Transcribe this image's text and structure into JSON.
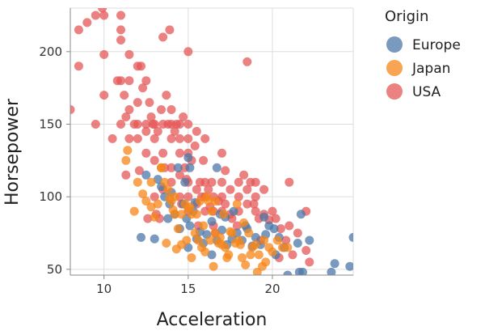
{
  "chart_data": {
    "type": "scatter",
    "xlabel": "Acceleration",
    "ylabel": "Horsepower",
    "xlim": [
      8,
      24.8
    ],
    "ylim": [
      46,
      230
    ],
    "x_ticks": [
      "10",
      "15",
      "20"
    ],
    "y_ticks": [
      "50",
      "100",
      "150",
      "200"
    ],
    "grid": true,
    "legend": {
      "title": "Origin",
      "placement": "right"
    },
    "colors": {
      "Europe": "#4c78a8",
      "Japan": "#f58518",
      "USA": "#e45756"
    },
    "series": [
      {
        "name": "Europe",
        "points": [
          [
            24.8,
            72
          ],
          [
            24.6,
            52
          ],
          [
            23.5,
            48
          ],
          [
            23.7,
            54
          ],
          [
            21.8,
            48
          ],
          [
            21.6,
            48
          ],
          [
            21.5,
            68
          ],
          [
            22.2,
            70
          ],
          [
            21.7,
            88
          ],
          [
            20.9,
            46
          ],
          [
            20.7,
            65
          ],
          [
            20.4,
            72
          ],
          [
            20.1,
            78
          ],
          [
            19.8,
            80
          ],
          [
            19.6,
            74
          ],
          [
            19.3,
            67
          ],
          [
            19.0,
            72
          ],
          [
            18.8,
            66
          ],
          [
            18.5,
            78
          ],
          [
            18.2,
            70
          ],
          [
            17.9,
            75
          ],
          [
            17.6,
            71
          ],
          [
            17.3,
            67
          ],
          [
            17.0,
            77
          ],
          [
            16.7,
            70
          ],
          [
            16.4,
            60
          ],
          [
            16.1,
            74
          ],
          [
            15.9,
            68
          ],
          [
            15.7,
            76
          ],
          [
            15.5,
            71
          ],
          [
            15.3,
            90
          ],
          [
            15.1,
            80
          ],
          [
            14.9,
            85
          ],
          [
            14.7,
            95
          ],
          [
            14.5,
            78
          ],
          [
            14.2,
            88
          ],
          [
            13.9,
            95
          ],
          [
            13.6,
            100
          ],
          [
            13.4,
            107
          ],
          [
            13.2,
            112
          ],
          [
            13.0,
            71
          ],
          [
            12.5,
            115
          ],
          [
            12.2,
            72
          ],
          [
            15.4,
            96
          ],
          [
            15.1,
            120
          ],
          [
            15.0,
            127
          ],
          [
            16.7,
            120
          ],
          [
            14.0,
            103
          ],
          [
            14.4,
            120
          ],
          [
            14.8,
            110
          ],
          [
            16.4,
            83
          ],
          [
            17.2,
            86
          ],
          [
            18.4,
            80
          ],
          [
            19.5,
            86
          ],
          [
            20.2,
            60
          ],
          [
            17.7,
            90
          ],
          [
            16.9,
            88
          ],
          [
            13.8,
            85
          ],
          [
            15.0,
            65
          ]
        ]
      },
      {
        "name": "Japan",
        "points": [
          [
            11.4,
            132
          ],
          [
            11.3,
            125
          ],
          [
            11.8,
            90
          ],
          [
            12.0,
            110
          ],
          [
            12.3,
            102
          ],
          [
            12.5,
            97
          ],
          [
            12.8,
            93
          ],
          [
            13.0,
            86
          ],
          [
            13.2,
            95
          ],
          [
            13.4,
            120
          ],
          [
            13.6,
            110
          ],
          [
            13.8,
            105
          ],
          [
            14.0,
            97
          ],
          [
            14.2,
            88
          ],
          [
            14.4,
            78
          ],
          [
            14.6,
            67
          ],
          [
            14.8,
            95
          ],
          [
            15.0,
            92
          ],
          [
            15.2,
            88
          ],
          [
            15.4,
            75
          ],
          [
            15.6,
            70
          ],
          [
            15.8,
            65
          ],
          [
            16.0,
            62
          ],
          [
            16.2,
            97
          ],
          [
            16.4,
            90
          ],
          [
            16.6,
            75
          ],
          [
            16.8,
            68
          ],
          [
            17.0,
            67
          ],
          [
            17.2,
            65
          ],
          [
            17.4,
            60
          ],
          [
            17.6,
            75
          ],
          [
            17.8,
            68
          ],
          [
            18.0,
            70
          ],
          [
            18.2,
            58
          ],
          [
            18.4,
            53
          ],
          [
            18.6,
            75
          ],
          [
            18.8,
            65
          ],
          [
            19.0,
            67
          ],
          [
            19.2,
            60
          ],
          [
            19.4,
            52
          ],
          [
            19.6,
            55
          ],
          [
            19.8,
            65
          ],
          [
            20.0,
            62
          ],
          [
            20.3,
            70
          ],
          [
            20.6,
            65
          ],
          [
            20.9,
            65
          ],
          [
            12.8,
            110
          ],
          [
            13.4,
            120
          ],
          [
            14.2,
            100
          ],
          [
            14.6,
            88
          ],
          [
            15.1,
            93
          ],
          [
            15.7,
            97
          ],
          [
            16.3,
            70
          ],
          [
            16.9,
            72
          ],
          [
            17.5,
            76
          ],
          [
            18.1,
            67
          ],
          [
            18.7,
            60
          ],
          [
            19.1,
            48
          ],
          [
            19.5,
            70
          ],
          [
            15.5,
            88
          ],
          [
            16.1,
            100
          ],
          [
            13.9,
            99
          ],
          [
            14.9,
            70
          ],
          [
            15.9,
            80
          ],
          [
            17.1,
            88
          ],
          [
            17.9,
            95
          ],
          [
            16.5,
            52
          ],
          [
            14.3,
            64
          ],
          [
            13.7,
            68
          ],
          [
            15.2,
            58
          ],
          [
            18.3,
            82
          ],
          [
            14.1,
            91
          ],
          [
            16.6,
            97
          ],
          [
            17.3,
            58
          ]
        ]
      },
      {
        "name": "USA",
        "points": [
          [
            8.0,
            160
          ],
          [
            8.5,
            215
          ],
          [
            8.5,
            190
          ],
          [
            9.0,
            220
          ],
          [
            9.5,
            225
          ],
          [
            10.0,
            225
          ],
          [
            9.9,
            230
          ],
          [
            10.0,
            198
          ],
          [
            9.5,
            150
          ],
          [
            10.0,
            170
          ],
          [
            10.5,
            140
          ],
          [
            10.8,
            180
          ],
          [
            11.0,
            225
          ],
          [
            11.0,
            215
          ],
          [
            11.0,
            208
          ],
          [
            11.0,
            180
          ],
          [
            11.0,
            150
          ],
          [
            11.2,
            170
          ],
          [
            11.3,
            155
          ],
          [
            11.5,
            198
          ],
          [
            11.5,
            180
          ],
          [
            11.5,
            160
          ],
          [
            11.5,
            140
          ],
          [
            11.3,
            115
          ],
          [
            11.8,
            150
          ],
          [
            12.0,
            190
          ],
          [
            12.0,
            165
          ],
          [
            12.0,
            150
          ],
          [
            12.0,
            140
          ],
          [
            12.2,
            190
          ],
          [
            12.3,
            175
          ],
          [
            12.5,
            180
          ],
          [
            12.5,
            150
          ],
          [
            12.5,
            145
          ],
          [
            12.5,
            130
          ],
          [
            12.7,
            165
          ],
          [
            12.8,
            155
          ],
          [
            12.9,
            150
          ],
          [
            13.0,
            150
          ],
          [
            13.0,
            140
          ],
          [
            13.0,
            125
          ],
          [
            13.0,
            100
          ],
          [
            13.2,
            145
          ],
          [
            13.4,
            160
          ],
          [
            13.5,
            210
          ],
          [
            13.5,
            150
          ],
          [
            13.5,
            130
          ],
          [
            13.5,
            105
          ],
          [
            13.7,
            170
          ],
          [
            13.8,
            150
          ],
          [
            13.9,
            215
          ],
          [
            14.0,
            160
          ],
          [
            14.0,
            150
          ],
          [
            14.0,
            140
          ],
          [
            14.0,
            120
          ],
          [
            14.0,
            110
          ],
          [
            14.2,
            145
          ],
          [
            14.3,
            150
          ],
          [
            14.5,
            150
          ],
          [
            14.5,
            140
          ],
          [
            14.5,
            130
          ],
          [
            14.5,
            115
          ],
          [
            14.5,
            100
          ],
          [
            14.7,
            155
          ],
          [
            14.8,
            120
          ],
          [
            15.0,
            200
          ],
          [
            15.0,
            150
          ],
          [
            15.0,
            140
          ],
          [
            15.0,
            130
          ],
          [
            15.0,
            110
          ],
          [
            15.0,
            100
          ],
          [
            15.0,
            90
          ],
          [
            15.2,
            125
          ],
          [
            15.4,
            135
          ],
          [
            15.5,
            145
          ],
          [
            15.5,
            105
          ],
          [
            15.5,
            95
          ],
          [
            15.7,
            110
          ],
          [
            15.8,
            100
          ],
          [
            16.0,
            140
          ],
          [
            16.0,
            110
          ],
          [
            16.0,
            100
          ],
          [
            16.0,
            90
          ],
          [
            16.2,
            105
          ],
          [
            16.4,
            110
          ],
          [
            16.5,
            100
          ],
          [
            16.5,
            90
          ],
          [
            16.5,
            80
          ],
          [
            16.8,
            97
          ],
          [
            17.0,
            130
          ],
          [
            17.0,
            110
          ],
          [
            17.0,
            100
          ],
          [
            17.0,
            90
          ],
          [
            17.2,
            95
          ],
          [
            17.5,
            105
          ],
          [
            17.5,
            88
          ],
          [
            18.0,
            110
          ],
          [
            18.0,
            100
          ],
          [
            18.0,
            90
          ],
          [
            18.3,
            115
          ],
          [
            18.5,
            193
          ],
          [
            18.5,
            105
          ],
          [
            18.5,
            95
          ],
          [
            18.7,
            110
          ],
          [
            19.0,
            110
          ],
          [
            19.0,
            100
          ],
          [
            19.0,
            90
          ],
          [
            19.2,
            85
          ],
          [
            19.5,
            105
          ],
          [
            19.5,
            88
          ],
          [
            20.0,
            90
          ],
          [
            20.2,
            85
          ],
          [
            20.5,
            78
          ],
          [
            20.8,
            70
          ],
          [
            21.0,
            110
          ],
          [
            21.0,
            80
          ],
          [
            21.2,
            60
          ],
          [
            21.5,
            75
          ],
          [
            22.0,
            90
          ],
          [
            22.0,
            63
          ],
          [
            22.2,
            55
          ],
          [
            12.6,
            85
          ],
          [
            13.3,
            85
          ],
          [
            14.6,
            95
          ],
          [
            15.6,
            80
          ],
          [
            16.6,
            75
          ],
          [
            17.6,
            85
          ],
          [
            19.3,
            70
          ],
          [
            20.4,
            58
          ],
          [
            12.1,
            118
          ],
          [
            13.6,
            120
          ],
          [
            15.9,
            125
          ],
          [
            17.2,
            118
          ],
          [
            14.9,
            112
          ],
          [
            16.3,
            93
          ],
          [
            18.9,
            95
          ],
          [
            17.9,
            80
          ],
          [
            19.8,
            84
          ],
          [
            13.1,
            88
          ]
        ]
      }
    ]
  }
}
